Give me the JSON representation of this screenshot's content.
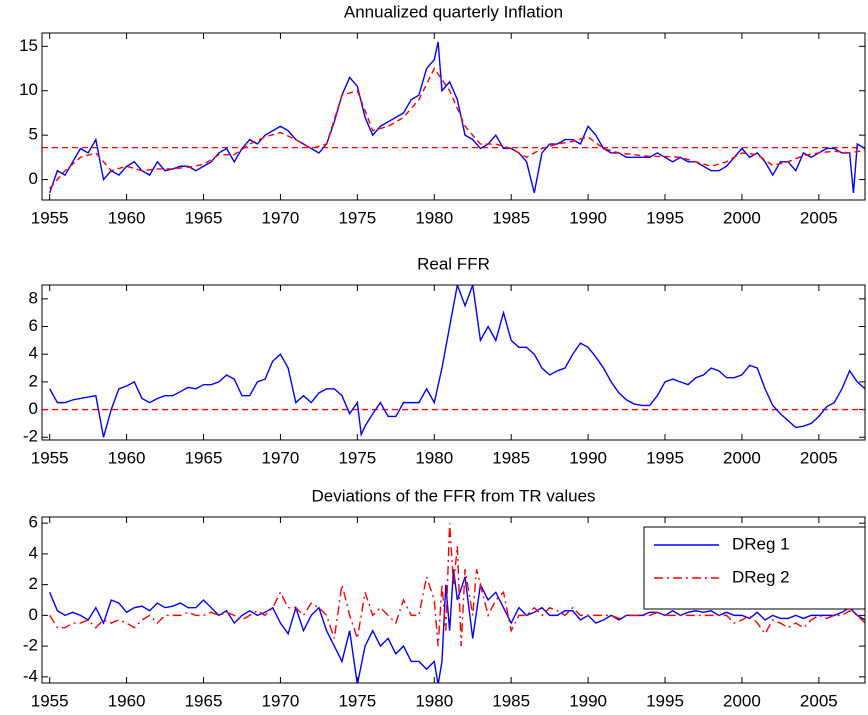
{
  "chart_data": [
    {
      "type": "line",
      "title": "Annualized quarterly Inflation",
      "xlim": [
        1954.5,
        2008
      ],
      "xticks": [
        1955,
        1960,
        1965,
        1970,
        1975,
        1980,
        1985,
        1990,
        1995,
        2000,
        2005
      ],
      "ylim": [
        -2.3,
        16.5
      ],
      "yticks": [
        0,
        5,
        10,
        15
      ],
      "hline": 3.6,
      "hline_color": "#ff0000",
      "series": [
        {
          "color": "#0000ff",
          "style": "solid",
          "x": [
            1955,
            1955.5,
            1956,
            1956.5,
            1957,
            1957.5,
            1958,
            1958.5,
            1959,
            1959.5,
            1960,
            1960.5,
            1961,
            1961.5,
            1962,
            1962.5,
            1963,
            1963.5,
            1964,
            1964.5,
            1965,
            1965.5,
            1966,
            1966.5,
            1967,
            1967.5,
            1968,
            1968.5,
            1969,
            1969.5,
            1970,
            1970.5,
            1971,
            1971.5,
            1972,
            1972.5,
            1973,
            1973.5,
            1974,
            1974.5,
            1975,
            1975.5,
            1976,
            1976.5,
            1977,
            1977.5,
            1978,
            1978.5,
            1979,
            1979.5,
            1980,
            1980.25,
            1980.5,
            1981,
            1981.5,
            1982,
            1982.5,
            1983,
            1983.5,
            1984,
            1984.5,
            1985,
            1985.5,
            1986,
            1986.5,
            1987,
            1987.5,
            1988,
            1988.5,
            1989,
            1989.5,
            1990,
            1990.5,
            1991,
            1991.5,
            1992,
            1992.5,
            1993,
            1993.5,
            1994,
            1994.5,
            1995,
            1995.5,
            1996,
            1996.5,
            1997,
            1997.5,
            1998,
            1998.5,
            1999,
            1999.5,
            2000,
            2000.5,
            2001,
            2001.5,
            2002,
            2002.5,
            2003,
            2003.5,
            2004,
            2004.5,
            2005,
            2005.5,
            2006,
            2006.5,
            2007,
            2007.25,
            2007.5,
            2008
          ],
          "values": [
            -1.5,
            1,
            0.5,
            2,
            3.5,
            3,
            4.5,
            0,
            1,
            0.5,
            1.5,
            2,
            1,
            0.5,
            2,
            1,
            1.2,
            1.5,
            1.5,
            1,
            1.5,
            2,
            3,
            3.5,
            2,
            3.5,
            4.5,
            4,
            5,
            5.5,
            6,
            5.5,
            4.5,
            4,
            3.5,
            3,
            4,
            6.5,
            9.5,
            11.5,
            10.5,
            7,
            5,
            6,
            6.5,
            7,
            7.5,
            9,
            9.5,
            12.5,
            13.5,
            15.5,
            10,
            11,
            9,
            5,
            4.5,
            3.5,
            4,
            5,
            3.5,
            3.5,
            3,
            2,
            -1.5,
            3,
            4,
            4,
            4.5,
            4.5,
            4,
            6,
            5,
            3.5,
            3,
            3,
            2.5,
            2.5,
            2.5,
            2.5,
            3,
            2.5,
            2,
            2.5,
            2,
            2,
            1.5,
            1,
            1,
            1.5,
            2.5,
            3.5,
            2.5,
            3,
            2,
            0.5,
            2,
            2,
            1,
            3,
            2.5,
            3,
            3.5,
            3.5,
            3,
            3,
            -1.5,
            4,
            3.5
          ]
        },
        {
          "color": "#ff0000",
          "style": "dashed",
          "x": [
            1955,
            1956,
            1957,
            1958,
            1959,
            1960,
            1961,
            1962,
            1963,
            1964,
            1965,
            1966,
            1967,
            1968,
            1969,
            1970,
            1971,
            1972,
            1973,
            1974,
            1975,
            1976,
            1977,
            1978,
            1979,
            1980,
            1981,
            1982,
            1983,
            1984,
            1985,
            1986,
            1987,
            1988,
            1989,
            1990,
            1991,
            1992,
            1993,
            1994,
            1995,
            1996,
            1997,
            1998,
            1999,
            2000,
            2001,
            2002,
            2003,
            2004,
            2005,
            2006,
            2007,
            2008
          ],
          "values": [
            -1,
            1,
            2.5,
            3,
            1,
            1.5,
            1,
            1.2,
            1.2,
            1.4,
            1.7,
            2.8,
            2.8,
            4,
            4.8,
            5.3,
            4.5,
            3.5,
            4,
            9.5,
            10,
            5.5,
            6,
            7,
            9,
            12.5,
            10,
            6,
            4,
            4,
            3.5,
            2.5,
            3.5,
            4,
            4.3,
            4.8,
            3.5,
            3,
            2.8,
            2.6,
            2.6,
            2.5,
            2,
            1.5,
            2,
            3,
            2.8,
            1.6,
            2,
            2.7,
            3,
            3.2,
            3,
            3.3
          ]
        }
      ]
    },
    {
      "type": "line",
      "title": "Real FFR",
      "xlim": [
        1954.5,
        2008
      ],
      "xticks": [
        1955,
        1960,
        1965,
        1970,
        1975,
        1980,
        1985,
        1990,
        1995,
        2000,
        2005
      ],
      "ylim": [
        -2.2,
        9
      ],
      "yticks": [
        -2,
        0,
        2,
        4,
        6,
        8
      ],
      "hline": 0,
      "hline_color": "#ff0000",
      "series": [
        {
          "color": "#0000ff",
          "style": "solid",
          "x": [
            1955,
            1955.5,
            1956,
            1956.5,
            1957,
            1957.5,
            1958,
            1958.25,
            1958.5,
            1959,
            1959.5,
            1960,
            1960.5,
            1961,
            1961.5,
            1962,
            1962.5,
            1963,
            1963.5,
            1964,
            1964.5,
            1965,
            1965.5,
            1966,
            1966.5,
            1967,
            1967.5,
            1968,
            1968.5,
            1969,
            1969.5,
            1970,
            1970.5,
            1971,
            1971.5,
            1972,
            1972.5,
            1973,
            1973.5,
            1974,
            1974.5,
            1975,
            1975.25,
            1975.5,
            1976,
            1976.5,
            1977,
            1977.5,
            1978,
            1978.5,
            1979,
            1979.5,
            1980,
            1980.5,
            1981,
            1981.5,
            1982,
            1982.5,
            1983,
            1983.5,
            1984,
            1984.5,
            1985,
            1985.5,
            1986,
            1986.5,
            1987,
            1987.5,
            1988,
            1988.5,
            1989,
            1989.5,
            1990,
            1990.5,
            1991,
            1991.5,
            1992,
            1992.5,
            1993,
            1993.5,
            1994,
            1994.5,
            1995,
            1995.5,
            1996,
            1996.5,
            1997,
            1997.5,
            1998,
            1998.5,
            1999,
            1999.5,
            2000,
            2000.5,
            2001,
            2001.5,
            2002,
            2002.5,
            2003,
            2003.5,
            2004,
            2004.5,
            2005,
            2005.5,
            2006,
            2006.5,
            2007,
            2007.5,
            2008
          ],
          "values": [
            1.5,
            0.5,
            0.5,
            0.7,
            0.8,
            0.9,
            1,
            -0.5,
            -2,
            0,
            1.5,
            1.7,
            2,
            0.8,
            0.5,
            0.8,
            1,
            1,
            1.3,
            1.6,
            1.5,
            1.8,
            1.8,
            2,
            2.5,
            2.2,
            1,
            1,
            2,
            2.2,
            3.5,
            4,
            3,
            0.5,
            1,
            0.5,
            1.2,
            1.5,
            1.5,
            1,
            -0.3,
            0.5,
            -1.8,
            -1.2,
            -0.3,
            0.5,
            -0.5,
            -0.5,
            0.5,
            0.5,
            0.5,
            1.5,
            0.5,
            3,
            6,
            9,
            7.5,
            9,
            5,
            6,
            5,
            7,
            5,
            4.5,
            4.5,
            4,
            3,
            2.5,
            2.8,
            3,
            4,
            4.8,
            4.5,
            3.8,
            3,
            2,
            1.2,
            0.7,
            0.4,
            0.3,
            0.3,
            1,
            2,
            2.2,
            2,
            1.8,
            2.3,
            2.5,
            3,
            2.8,
            2.3,
            2.3,
            2.5,
            3.2,
            3,
            1.5,
            0.3,
            -0.3,
            -0.8,
            -1.3,
            -1.2,
            -1,
            -0.5,
            0.2,
            0.5,
            1.5,
            2.8,
            2,
            1.5
          ]
        }
      ]
    },
    {
      "type": "line",
      "title": "Deviations of the FFR from TR values",
      "xlim": [
        1954.5,
        2008
      ],
      "xticks": [
        1955,
        1960,
        1965,
        1970,
        1975,
        1980,
        1985,
        1990,
        1995,
        2000,
        2005
      ],
      "ylim": [
        -4.4,
        6.4
      ],
      "yticks": [
        -4,
        -2,
        0,
        2,
        4,
        6
      ],
      "legend": "upper right",
      "series": [
        {
          "name": "DReg 1",
          "color": "#0000ff",
          "style": "solid",
          "x": [
            1955,
            1955.5,
            1956,
            1956.5,
            1957,
            1957.5,
            1958,
            1958.5,
            1959,
            1959.5,
            1960,
            1960.5,
            1961,
            1961.5,
            1962,
            1962.5,
            1963,
            1963.5,
            1964,
            1964.5,
            1965,
            1965.5,
            1966,
            1966.5,
            1967,
            1967.5,
            1968,
            1968.5,
            1969,
            1969.5,
            1970,
            1970.5,
            1971,
            1971.5,
            1972,
            1972.5,
            1973,
            1973.5,
            1974,
            1974.5,
            1975,
            1975.5,
            1976,
            1976.5,
            1977,
            1977.5,
            1978,
            1978.5,
            1979,
            1979.5,
            1980,
            1980.25,
            1980.5,
            1980.75,
            1981,
            1981.25,
            1981.5,
            1982,
            1982.5,
            1983,
            1983.5,
            1984,
            1984.5,
            1985,
            1985.5,
            1986,
            1986.5,
            1987,
            1987.5,
            1988,
            1988.5,
            1989,
            1989.5,
            1990,
            1990.5,
            1991,
            1991.5,
            1992,
            1992.5,
            1993,
            1993.5,
            1994,
            1994.5,
            1995,
            1995.5,
            1996,
            1996.5,
            1997,
            1997.5,
            1998,
            1998.5,
            1999,
            1999.5,
            2000,
            2000.5,
            2001,
            2001.5,
            2002,
            2002.5,
            2003,
            2003.5,
            2004,
            2004.5,
            2005,
            2005.5,
            2006,
            2006.5,
            2007,
            2007.5,
            2008
          ],
          "values": [
            1.5,
            0.3,
            0,
            0.2,
            0,
            -0.3,
            0.5,
            -0.5,
            1,
            0.8,
            0.2,
            0.5,
            0.6,
            0.3,
            0.8,
            0.5,
            0.6,
            0.8,
            0.5,
            0.5,
            1,
            0.5,
            0,
            0.3,
            -0.5,
            0,
            0.3,
            0,
            0.2,
            0.5,
            -0.5,
            -1.2,
            0.5,
            -1,
            0,
            0.5,
            -1,
            -2,
            -3,
            -1,
            -4.5,
            -2,
            -1,
            -2,
            -1.5,
            -2.5,
            -2,
            -3,
            -3,
            -3.5,
            -3,
            -4.5,
            -3,
            2,
            -1,
            3,
            1,
            2.5,
            -1.5,
            2,
            1,
            1.5,
            0.5,
            -0.5,
            0.5,
            0,
            0.2,
            0.5,
            0,
            0,
            0.3,
            0.3,
            -0.3,
            0,
            -0.5,
            -0.3,
            0,
            -0.3,
            0,
            0,
            0,
            0.2,
            0.2,
            0,
            0.3,
            0,
            0.2,
            0.3,
            0.2,
            0.3,
            0,
            0.2,
            0,
            0,
            -0.2,
            0.2,
            -0.3,
            0,
            -0.2,
            -0.2,
            0,
            -0.2,
            0,
            0,
            0,
            0,
            0.2,
            0.5,
            0,
            -0.3
          ]
        },
        {
          "name": "DReg 2",
          "color": "#ff0000",
          "style": "dashdot",
          "x": [
            1955,
            1955.5,
            1956,
            1956.5,
            1957,
            1957.5,
            1958,
            1958.5,
            1959,
            1959.5,
            1960,
            1960.5,
            1961,
            1961.5,
            1962,
            1962.5,
            1963,
            1963.5,
            1964,
            1964.5,
            1965,
            1965.5,
            1966,
            1966.5,
            1967,
            1967.5,
            1968,
            1968.5,
            1969,
            1969.5,
            1970,
            1970.5,
            1971,
            1971.5,
            1972,
            1972.5,
            1973,
            1973.5,
            1974,
            1974.5,
            1975,
            1975.5,
            1976,
            1976.5,
            1977,
            1977.5,
            1978,
            1978.5,
            1979,
            1979.5,
            1980,
            1980.25,
            1980.5,
            1980.75,
            1981,
            1981.25,
            1981.5,
            1981.75,
            1982,
            1982.5,
            1982.75,
            1983,
            1983.5,
            1984,
            1984.5,
            1985,
            1985.5,
            1986,
            1986.5,
            1987,
            1987.5,
            1988,
            1988.5,
            1989,
            1989.5,
            1990,
            1990.5,
            1991,
            1991.5,
            1992,
            1992.5,
            1993,
            1993.5,
            1994,
            1994.5,
            1995,
            1995.5,
            1996,
            1996.5,
            1997,
            1997.5,
            1998,
            1998.5,
            1999,
            1999.5,
            2000,
            2000.5,
            2001,
            2001.5,
            2002,
            2002.5,
            2003,
            2003.5,
            2004,
            2004.5,
            2005,
            2005.5,
            2006,
            2006.5,
            2007,
            2007.5,
            2008
          ],
          "values": [
            0,
            -0.8,
            -0.8,
            -0.5,
            -0.5,
            -0.3,
            -0.8,
            -0.3,
            -0.5,
            -0.3,
            -0.5,
            -0.8,
            -0.3,
            0,
            -0.5,
            0,
            0,
            0,
            0.2,
            0,
            0,
            0.2,
            0,
            0.2,
            0,
            -0.3,
            0,
            0.3,
            0,
            0.5,
            1.5,
            0.5,
            0.5,
            0,
            0.8,
            0.5,
            0,
            -1.5,
            2,
            0,
            -1.5,
            1.5,
            0,
            0.5,
            0,
            -0.5,
            1,
            0,
            0,
            2.5,
            1,
            -2,
            2,
            -1,
            6,
            2,
            4.5,
            -2,
            3,
            0,
            3,
            2,
            0,
            1,
            1.5,
            -1,
            0,
            0,
            0.5,
            0,
            0.5,
            0.3,
            0,
            0.5,
            0,
            0,
            0,
            0,
            0,
            -0.2,
            0,
            0,
            0,
            0,
            0.2,
            0,
            0,
            0,
            0,
            0,
            0,
            0,
            0,
            0,
            -0.5,
            -0.3,
            0,
            -0.5,
            -1.2,
            -0.3,
            -0.5,
            -0.8,
            -0.5,
            -0.8,
            -0.3,
            0,
            -0.2,
            0,
            0,
            0.3,
            0,
            -0.5
          ]
        }
      ]
    }
  ]
}
